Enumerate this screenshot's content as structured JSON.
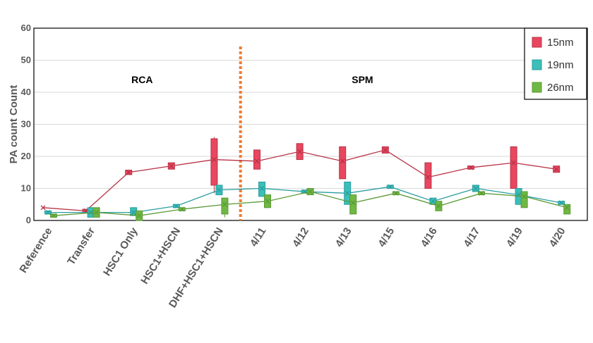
{
  "chart_data": {
    "type": "box",
    "ylabel": "PA count Count",
    "xlabel": "",
    "ylim": [
      0,
      60
    ],
    "yticks": [
      "0",
      "10",
      "20",
      "30",
      "40",
      "50",
      "60"
    ],
    "grid": true,
    "legend_position": "top-right",
    "categories": [
      "Reference",
      "Transfer",
      "HSC1 Only",
      "HSC1+HSCN",
      "DHF+HSC1+HSCN",
      "4/11",
      "4/12",
      "4/13",
      "4/15",
      "4/16",
      "4/17",
      "4/19",
      "4/20"
    ],
    "divider_after_category": "DHF+HSC1+HSCN",
    "divider_color": "#ED7D31",
    "annotations": [
      {
        "text": "RCA",
        "x_category_index": 2.2,
        "y": 44
      },
      {
        "text": "SPM",
        "x_category_index": 7.35,
        "y": 44
      }
    ],
    "series": [
      {
        "name": "15nm",
        "color": "#E8475F",
        "line_color": "#B83246",
        "means": [
          4,
          3,
          15,
          17,
          19,
          18.5,
          21.5,
          18.5,
          22,
          13.5,
          16.5,
          18,
          16
        ],
        "boxes": [
          null,
          {
            "q1": 2.5,
            "q3": 3.5
          },
          {
            "q1": 14.3,
            "q3": 15.7
          },
          {
            "q1": 16,
            "q3": 18
          },
          {
            "q1": 11,
            "q3": 25.5,
            "wlo": 8.5,
            "whi": 26
          },
          {
            "q1": 16,
            "q3": 22
          },
          {
            "q1": 19,
            "q3": 24
          },
          {
            "q1": 13,
            "q3": 23
          },
          {
            "q1": 21,
            "q3": 23
          },
          {
            "q1": 10,
            "q3": 18
          },
          {
            "q1": 16,
            "q3": 17
          },
          {
            "q1": 10,
            "q3": 23
          },
          {
            "q1": 15,
            "q3": 17
          }
        ]
      },
      {
        "name": "19nm",
        "color": "#3BBFB8",
        "line_color": "#2A9DA0",
        "means": [
          2.5,
          2.5,
          2.5,
          4.5,
          9.5,
          10,
          9,
          8.5,
          10.5,
          6,
          10,
          8,
          5.5
        ],
        "boxes": [
          {
            "q1": 2,
            "q3": 3
          },
          {
            "q1": 1,
            "q3": 4
          },
          {
            "q1": 1.5,
            "q3": 4
          },
          {
            "q1": 4,
            "q3": 5
          },
          {
            "q1": 8,
            "q3": 11
          },
          {
            "q1": 7.5,
            "q3": 12
          },
          {
            "q1": 8.5,
            "q3": 9.5
          },
          {
            "q1": 5,
            "q3": 12
          },
          {
            "q1": 10,
            "q3": 11
          },
          {
            "q1": 5,
            "q3": 7
          },
          {
            "q1": 9,
            "q3": 11
          },
          {
            "q1": 5,
            "q3": 10
          },
          {
            "q1": 5,
            "q3": 6
          }
        ]
      },
      {
        "name": "26nm",
        "color": "#70B844",
        "line_color": "#5A9A35",
        "means": [
          1.5,
          2.5,
          1.5,
          3.5,
          5,
          6,
          9,
          5.5,
          8.5,
          4.5,
          8.5,
          7.5,
          4
        ],
        "boxes": [
          {
            "q1": 1,
            "q3": 2
          },
          {
            "q1": 1,
            "q3": 4
          },
          {
            "q1": 0,
            "q3": 3
          },
          {
            "q1": 3,
            "q3": 4
          },
          {
            "q1": 2,
            "q3": 7,
            "wlo": 1,
            "whi": 7
          },
          {
            "q1": 4,
            "q3": 8
          },
          {
            "q1": 8,
            "q3": 10
          },
          {
            "q1": 2,
            "q3": 8
          },
          {
            "q1": 8,
            "q3": 9
          },
          {
            "q1": 3,
            "q3": 6
          },
          {
            "q1": 8,
            "q3": 9
          },
          {
            "q1": 4,
            "q3": 9
          },
          {
            "q1": 2,
            "q3": 5
          }
        ]
      }
    ]
  }
}
